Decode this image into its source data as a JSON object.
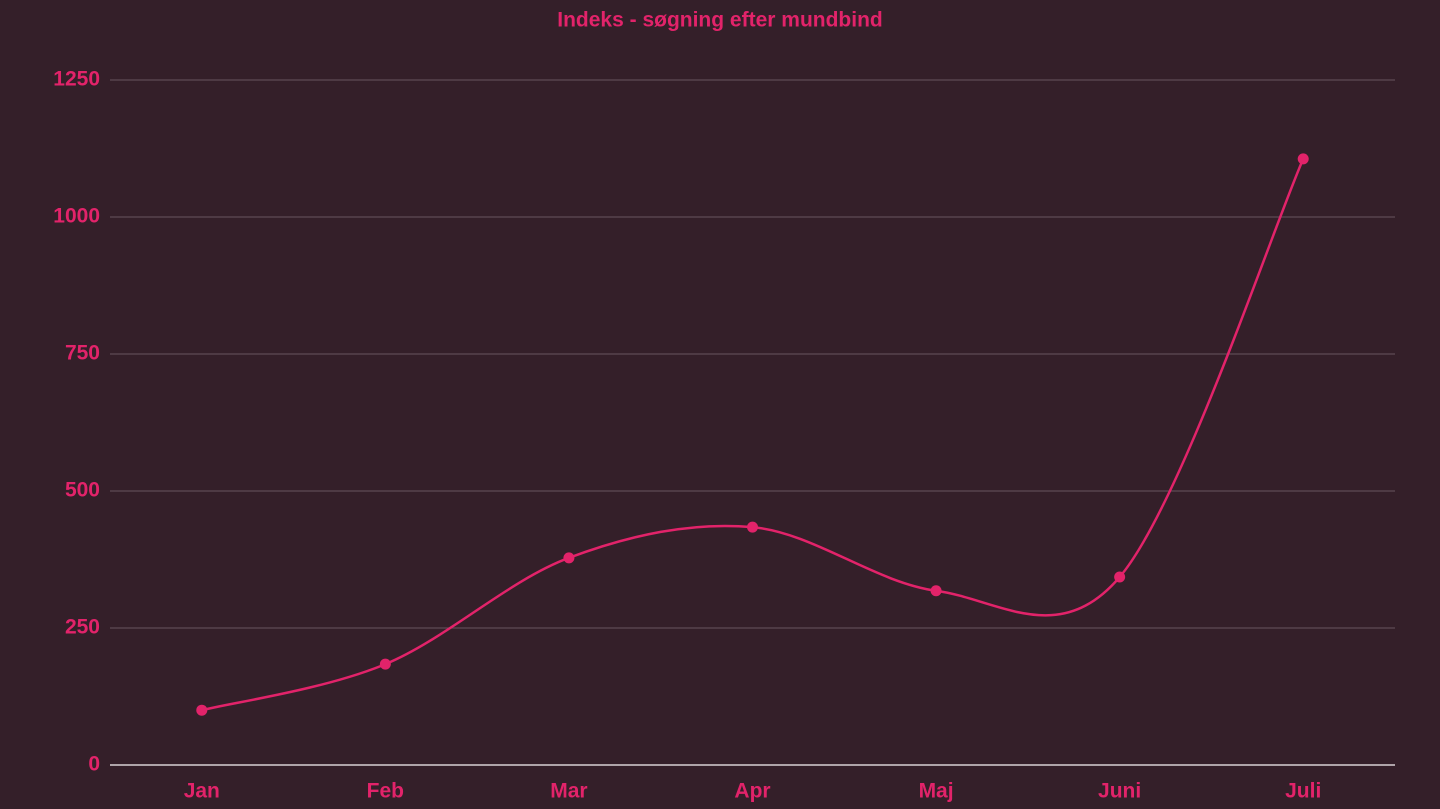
{
  "chart_data": {
    "type": "line",
    "title": "Indeks - søgning efter mundbind",
    "categories": [
      "Jan",
      "Feb",
      "Mar",
      "Apr",
      "Maj",
      "Juni",
      "Juli"
    ],
    "values": [
      100,
      184,
      378,
      434,
      318,
      343,
      1106
    ],
    "color": "#e2236a",
    "smooth": true,
    "ylim": [
      0,
      1250
    ],
    "yticks": [
      0,
      250,
      500,
      750,
      1000,
      1250
    ],
    "grid": true
  }
}
